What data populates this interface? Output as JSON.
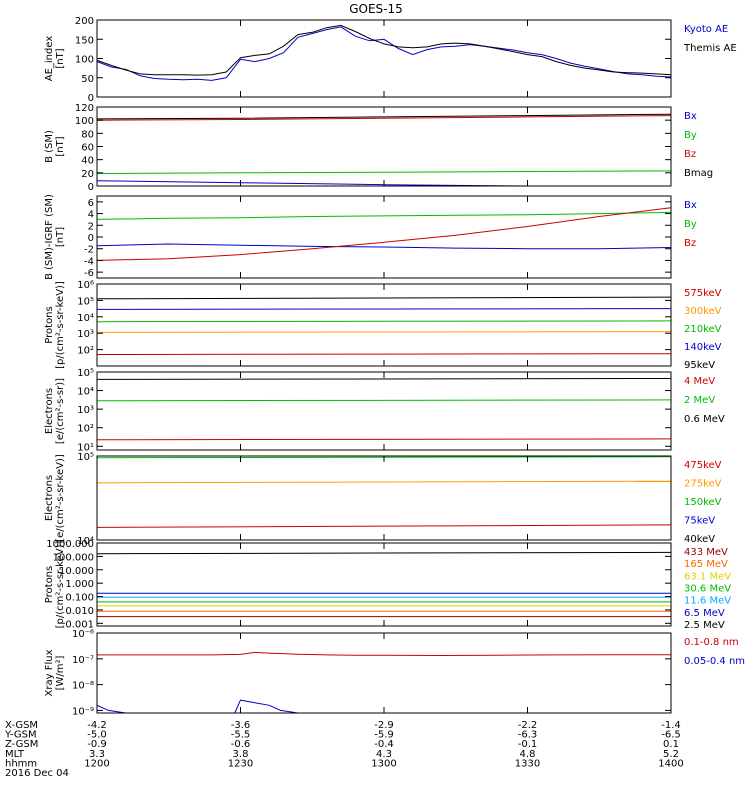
{
  "title": "GOES-15",
  "chart_data": [
    {
      "id": "ae",
      "type": "line",
      "ylabel": [
        "AE_index",
        "[nT]"
      ],
      "scale": "linear",
      "ylim": [
        0,
        200
      ],
      "ticks": [
        "0",
        "50",
        "100",
        "150",
        "200"
      ],
      "tick_values": [
        0,
        50,
        100,
        150,
        200
      ],
      "legend": [
        {
          "name": "Kyoto AE",
          "color": "#0000cc"
        },
        {
          "name": "Themis AE",
          "color": "#000000"
        }
      ],
      "series": [
        {
          "name": "Kyoto AE",
          "color": "#0000cc",
          "x": [
            0,
            5,
            10,
            15,
            20,
            25,
            30,
            35,
            40,
            45,
            50,
            55,
            60,
            65,
            70,
            75,
            80,
            85,
            90,
            95,
            100,
            105,
            110,
            115,
            120,
            125,
            130,
            135,
            140,
            145,
            150,
            155,
            160,
            165,
            170,
            175,
            180,
            185,
            190,
            195,
            200
          ],
          "values": [
            92,
            78,
            72,
            55,
            48,
            46,
            45,
            46,
            43,
            50,
            98,
            92,
            100,
            115,
            155,
            165,
            175,
            182,
            158,
            146,
            150,
            126,
            110,
            123,
            130,
            132,
            136,
            132,
            127,
            122,
            115,
            110,
            100,
            88,
            80,
            73,
            66,
            60,
            58,
            54,
            52
          ]
        },
        {
          "name": "Themis AE",
          "color": "#000000",
          "x": [
            0,
            5,
            10,
            15,
            20,
            25,
            30,
            35,
            40,
            45,
            50,
            55,
            60,
            65,
            70,
            75,
            80,
            85,
            90,
            95,
            100,
            105,
            110,
            115,
            120,
            125,
            130,
            135,
            140,
            145,
            150,
            155,
            160,
            165,
            170,
            175,
            180,
            185,
            190,
            195,
            200
          ],
          "values": [
            95,
            82,
            70,
            60,
            58,
            58,
            58,
            57,
            58,
            65,
            102,
            108,
            112,
            132,
            162,
            168,
            180,
            186,
            170,
            152,
            138,
            130,
            128,
            130,
            138,
            140,
            138,
            132,
            125,
            118,
            110,
            105,
            92,
            82,
            75,
            70,
            65,
            63,
            62,
            60,
            58
          ]
        }
      ]
    },
    {
      "id": "bsm",
      "type": "line",
      "ylabel": [
        "B (SM)",
        "[nT]"
      ],
      "scale": "linear",
      "ylim": [
        0,
        120
      ],
      "ticks": [
        "0",
        "20",
        "40",
        "60",
        "80",
        "100",
        "120"
      ],
      "tick_values": [
        0,
        20,
        40,
        60,
        80,
        100,
        120
      ],
      "legend": [
        {
          "name": "Bx",
          "color": "#0000cc"
        },
        {
          "name": "By",
          "color": "#00bb00"
        },
        {
          "name": "Bz",
          "color": "#cc0000"
        },
        {
          "name": "Bmag",
          "color": "#000000"
        }
      ],
      "series": [
        {
          "name": "Bx",
          "color": "#0000cc",
          "x": [
            0,
            50,
            100,
            150,
            200
          ],
          "values": [
            8,
            5,
            2,
            0,
            -2
          ]
        },
        {
          "name": "By",
          "color": "#00bb00",
          "x": [
            0,
            50,
            100,
            150,
            200
          ],
          "values": [
            19,
            20,
            21,
            22,
            23
          ]
        },
        {
          "name": "Bz",
          "color": "#cc0000",
          "x": [
            0,
            50,
            100,
            150,
            200
          ],
          "values": [
            100,
            101,
            103,
            105,
            107
          ]
        },
        {
          "name": "Bmag",
          "color": "#000000",
          "x": [
            0,
            50,
            100,
            150,
            200
          ],
          "values": [
            102,
            103,
            105,
            107,
            109
          ]
        }
      ]
    },
    {
      "id": "bdiff",
      "type": "line",
      "ylabel": [
        "B (SM)-IGRF (SM)",
        "[nT]"
      ],
      "scale": "linear",
      "ylim": [
        -7,
        7
      ],
      "ticks": [
        "-6",
        "-4",
        "-2",
        "0",
        "2",
        "4",
        "6"
      ],
      "tick_values": [
        -6,
        -4,
        -2,
        0,
        2,
        4,
        6
      ],
      "legend": [
        {
          "name": "Bx",
          "color": "#0000cc"
        },
        {
          "name": "By",
          "color": "#00bb00"
        },
        {
          "name": "Bz",
          "color": "#cc0000"
        }
      ],
      "series": [
        {
          "name": "Bx",
          "color": "#0000cc",
          "x": [
            0,
            25,
            50,
            75,
            100,
            125,
            150,
            175,
            200
          ],
          "values": [
            -1.5,
            -1.2,
            -1.4,
            -1.6,
            -1.7,
            -1.9,
            -2.0,
            -2.0,
            -1.8
          ]
        },
        {
          "name": "By",
          "color": "#00bb00",
          "x": [
            0,
            25,
            50,
            75,
            100,
            125,
            150,
            175,
            200
          ],
          "values": [
            3.0,
            3.2,
            3.3,
            3.5,
            3.6,
            3.7,
            3.8,
            4.0,
            4.2
          ]
        },
        {
          "name": "Bz",
          "color": "#cc0000",
          "x": [
            0,
            25,
            50,
            75,
            100,
            125,
            150,
            175,
            200
          ],
          "values": [
            -4.0,
            -3.7,
            -3.0,
            -2.0,
            -0.9,
            0.3,
            1.8,
            3.5,
            5.0
          ]
        }
      ]
    },
    {
      "id": "protons1",
      "type": "line",
      "ylabel": [
        "Protons",
        "[p/(cm²-s-sr-keV)]"
      ],
      "scale": "log",
      "ylim": [
        1,
        6
      ],
      "ticks": [
        "10²",
        "10³",
        "10⁴",
        "10⁵",
        "10⁶"
      ],
      "tick_values": [
        2,
        3,
        4,
        5,
        6
      ],
      "legend": [
        {
          "name": "575keV",
          "color": "#cc0000"
        },
        {
          "name": "300keV",
          "color": "#ff9900"
        },
        {
          "name": "210keV",
          "color": "#00bb00"
        },
        {
          "name": "140keV",
          "color": "#0000cc"
        },
        {
          "name": "95keV",
          "color": "#000000"
        }
      ],
      "series": [
        {
          "name": "575keV",
          "color": "#cc0000",
          "x": [
            0,
            200
          ],
          "values": [
            1.7,
            1.75
          ]
        },
        {
          "name": "300keV",
          "color": "#ff9900",
          "x": [
            0,
            200
          ],
          "values": [
            3.05,
            3.1
          ]
        },
        {
          "name": "210keV",
          "color": "#00bb00",
          "x": [
            0,
            200
          ],
          "values": [
            3.7,
            3.75
          ]
        },
        {
          "name": "140keV",
          "color": "#0000cc",
          "x": [
            0,
            200
          ],
          "values": [
            4.45,
            4.5
          ]
        },
        {
          "name": "95keV",
          "color": "#000000",
          "x": [
            0,
            200
          ],
          "values": [
            5.1,
            5.2
          ]
        }
      ]
    },
    {
      "id": "electrons1",
      "type": "line",
      "ylabel": [
        "Electrons",
        "[e/(cm²-s-sr)]"
      ],
      "scale": "log",
      "ylim": [
        0.8,
        5
      ],
      "ticks": [
        "10¹",
        "10²",
        "10³",
        "10⁴",
        "10⁵"
      ],
      "tick_values": [
        1,
        2,
        3,
        4,
        5
      ],
      "legend": [
        {
          "name": "4 MeV",
          "color": "#cc0000"
        },
        {
          "name": "2 MeV",
          "color": "#00bb00"
        },
        {
          "name": "0.6 MeV",
          "color": "#000000"
        }
      ],
      "series": [
        {
          "name": "4 MeV",
          "color": "#cc0000",
          "x": [
            0,
            200
          ],
          "values": [
            1.35,
            1.4
          ]
        },
        {
          "name": "2 MeV",
          "color": "#00bb00",
          "x": [
            0,
            200
          ],
          "values": [
            3.45,
            3.5
          ]
        },
        {
          "name": "0.6 MeV",
          "color": "#000000",
          "x": [
            0,
            200
          ],
          "values": [
            4.6,
            4.65
          ]
        }
      ]
    },
    {
      "id": "electrons2",
      "type": "line",
      "ylabel": [
        "Electrons",
        "[e/(cm²-s-sr-keV)]"
      ],
      "scale": "log",
      "ylim": [
        4,
        5
      ],
      "ticks": [
        "10⁴",
        "10⁵"
      ],
      "tick_values": [
        4,
        5
      ],
      "legend": [
        {
          "name": "475keV",
          "color": "#cc0000"
        },
        {
          "name": "275keV",
          "color": "#ff9900"
        },
        {
          "name": "150keV",
          "color": "#00bb00"
        },
        {
          "name": "75keV",
          "color": "#0000cc"
        },
        {
          "name": "40keV",
          "color": "#000000"
        }
      ],
      "series": [
        {
          "name": "475keV",
          "color": "#cc0000",
          "x": [
            0,
            200
          ],
          "values": [
            4.15,
            4.18
          ]
        },
        {
          "name": "275keV",
          "color": "#ff9900",
          "x": [
            0,
            200
          ],
          "values": [
            4.68,
            4.7
          ]
        },
        {
          "name": "150keV",
          "color": "#00bb00",
          "x": [
            0,
            200
          ],
          "values": [
            4.98,
            4.99
          ]
        }
      ]
    },
    {
      "id": "protons2",
      "type": "line",
      "ylabel": [
        "Protons",
        "[p/(cm²-s-sr-keV)]"
      ],
      "scale": "log",
      "ylim": [
        -3.2,
        3
      ],
      "ticks": [
        "0.001",
        "0.010",
        "0.100",
        "1.000",
        "10.000",
        "100.000",
        "1000.000"
      ],
      "tick_values": [
        -3,
        -2,
        -1,
        0,
        1,
        2,
        3
      ],
      "legend": [
        {
          "name": "433 MeV",
          "color": "#990000"
        },
        {
          "name": "165 MeV",
          "color": "#ff6600"
        },
        {
          "name": "63.1 MeV",
          "color": "#e0d000"
        },
        {
          "name": "30.6 MeV",
          "color": "#00bb00"
        },
        {
          "name": "11.6 MeV",
          "color": "#00aaff"
        },
        {
          "name": "6.5 MeV",
          "color": "#0000cc"
        },
        {
          "name": "2.5 MeV",
          "color": "#000000"
        }
      ],
      "series": [
        {
          "name": "433 MeV",
          "color": "#990000",
          "x": [
            0,
            200
          ],
          "values": [
            -2.5,
            -2.5
          ]
        },
        {
          "name": "165 MeV",
          "color": "#ff6600",
          "x": [
            0,
            200
          ],
          "values": [
            -2.1,
            -2.1
          ]
        },
        {
          "name": "63.1 MeV",
          "color": "#e0d000",
          "x": [
            0,
            200
          ],
          "values": [
            -1.7,
            -1.7
          ]
        },
        {
          "name": "30.6 MeV",
          "color": "#00bb00",
          "x": [
            0,
            200
          ],
          "values": [
            -1.4,
            -1.4
          ]
        },
        {
          "name": "11.6 MeV",
          "color": "#00aaff",
          "x": [
            0,
            200
          ],
          "values": [
            -1.05,
            -1.05
          ]
        },
        {
          "name": "6.5 MeV",
          "color": "#0000cc",
          "x": [
            0,
            200
          ],
          "values": [
            -0.75,
            -0.75
          ]
        },
        {
          "name": "2.5 MeV",
          "color": "#000000",
          "x": [
            0,
            200
          ],
          "values": [
            2.2,
            2.3
          ]
        }
      ]
    },
    {
      "id": "xray",
      "type": "line",
      "ylabel": [
        "Xray Flux",
        "[W/m²]"
      ],
      "scale": "log",
      "ylim": [
        -9.1,
        -6
      ],
      "ticks": [
        "10⁻⁹",
        "10⁻⁸",
        "10⁻⁷",
        "10⁻⁶"
      ],
      "tick_values": [
        -9,
        -8,
        -7,
        -6
      ],
      "legend": [
        {
          "name": "0.1-0.8 nm",
          "color": "#cc0000"
        },
        {
          "name": "0.05-0.4 nm",
          "color": "#0000cc"
        }
      ],
      "series": [
        {
          "name": "0.1-0.8 nm",
          "color": "#cc0000",
          "x": [
            0,
            40,
            50,
            55,
            60,
            70,
            80,
            90,
            100,
            120,
            140,
            160,
            180,
            200
          ],
          "values": [
            -6.85,
            -6.85,
            -6.83,
            -6.75,
            -6.78,
            -6.82,
            -6.85,
            -6.86,
            -6.86,
            -6.87,
            -6.86,
            -6.85,
            -6.84,
            -6.84
          ]
        },
        {
          "name": "0.05-0.4 nm",
          "color": "#0000cc",
          "x": [
            0,
            4,
            10,
            48,
            50,
            55,
            60,
            64,
            70,
            200
          ],
          "values": [
            -8.8,
            -9.0,
            -9.1,
            -9.1,
            -8.6,
            -8.7,
            -8.8,
            -9.0,
            -9.1,
            -9.1
          ]
        }
      ]
    }
  ],
  "x_axis": {
    "rows": [
      {
        "label": "X-GSM",
        "values": [
          "-4.2",
          "-3.6",
          "-2.9",
          "-2.2",
          "-1.4"
        ]
      },
      {
        "label": "Y-GSM",
        "values": [
          "-5.0",
          "-5.5",
          "-5.9",
          "-6.3",
          "-6.5"
        ]
      },
      {
        "label": "Z-GSM",
        "values": [
          "-0.9",
          "-0.6",
          "-0.4",
          "-0.1",
          "0.1"
        ]
      },
      {
        "label": "MLT",
        "values": [
          "3.3",
          "3.8",
          "4.3",
          "4.8",
          "5.2"
        ]
      },
      {
        "label": "hhmm",
        "values": [
          "1200",
          "1230",
          "1300",
          "1330",
          "1400"
        ]
      }
    ],
    "date": "2016 Dec 04"
  }
}
